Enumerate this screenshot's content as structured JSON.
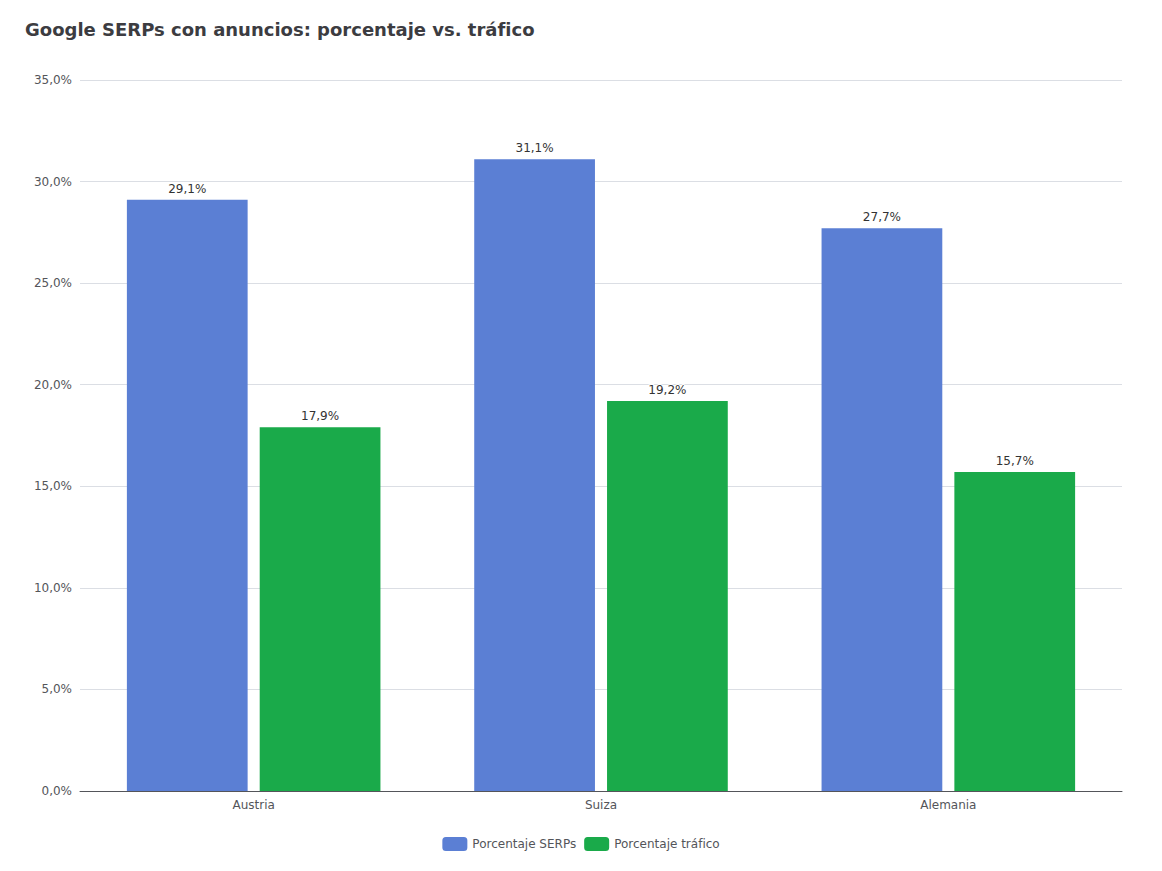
{
  "chart_data": {
    "type": "bar",
    "title": "Google SERPs con anuncios: porcentaje vs. tráfico",
    "categories": [
      "Austria",
      "Suiza",
      "Alemania"
    ],
    "series": [
      {
        "name": "Porcentaje SERPs",
        "color": "#5b7fd4",
        "values": [
          29.1,
          31.1,
          27.7
        ],
        "value_labels": [
          "29,1%",
          "31,1%",
          "27,7%"
        ]
      },
      {
        "name": "Porcentaje tráfico",
        "color": "#1aaa4a",
        "values": [
          17.9,
          19.2,
          15.7
        ],
        "value_labels": [
          "17,9%",
          "19,2%",
          "15,7%"
        ]
      }
    ],
    "ylim": [
      0,
      35
    ],
    "yticks": [
      {
        "value": 0,
        "label": "0,0%"
      },
      {
        "value": 5,
        "label": "5,0%"
      },
      {
        "value": 10,
        "label": "10,0%"
      },
      {
        "value": 15,
        "label": "15,0%"
      },
      {
        "value": 20,
        "label": "20,0%"
      },
      {
        "value": 25,
        "label": "25,0%"
      },
      {
        "value": 30,
        "label": "30,0%"
      },
      {
        "value": 35,
        "label": "35,0%"
      }
    ],
    "grid": true,
    "legend": "bottom",
    "data_labels": true
  }
}
